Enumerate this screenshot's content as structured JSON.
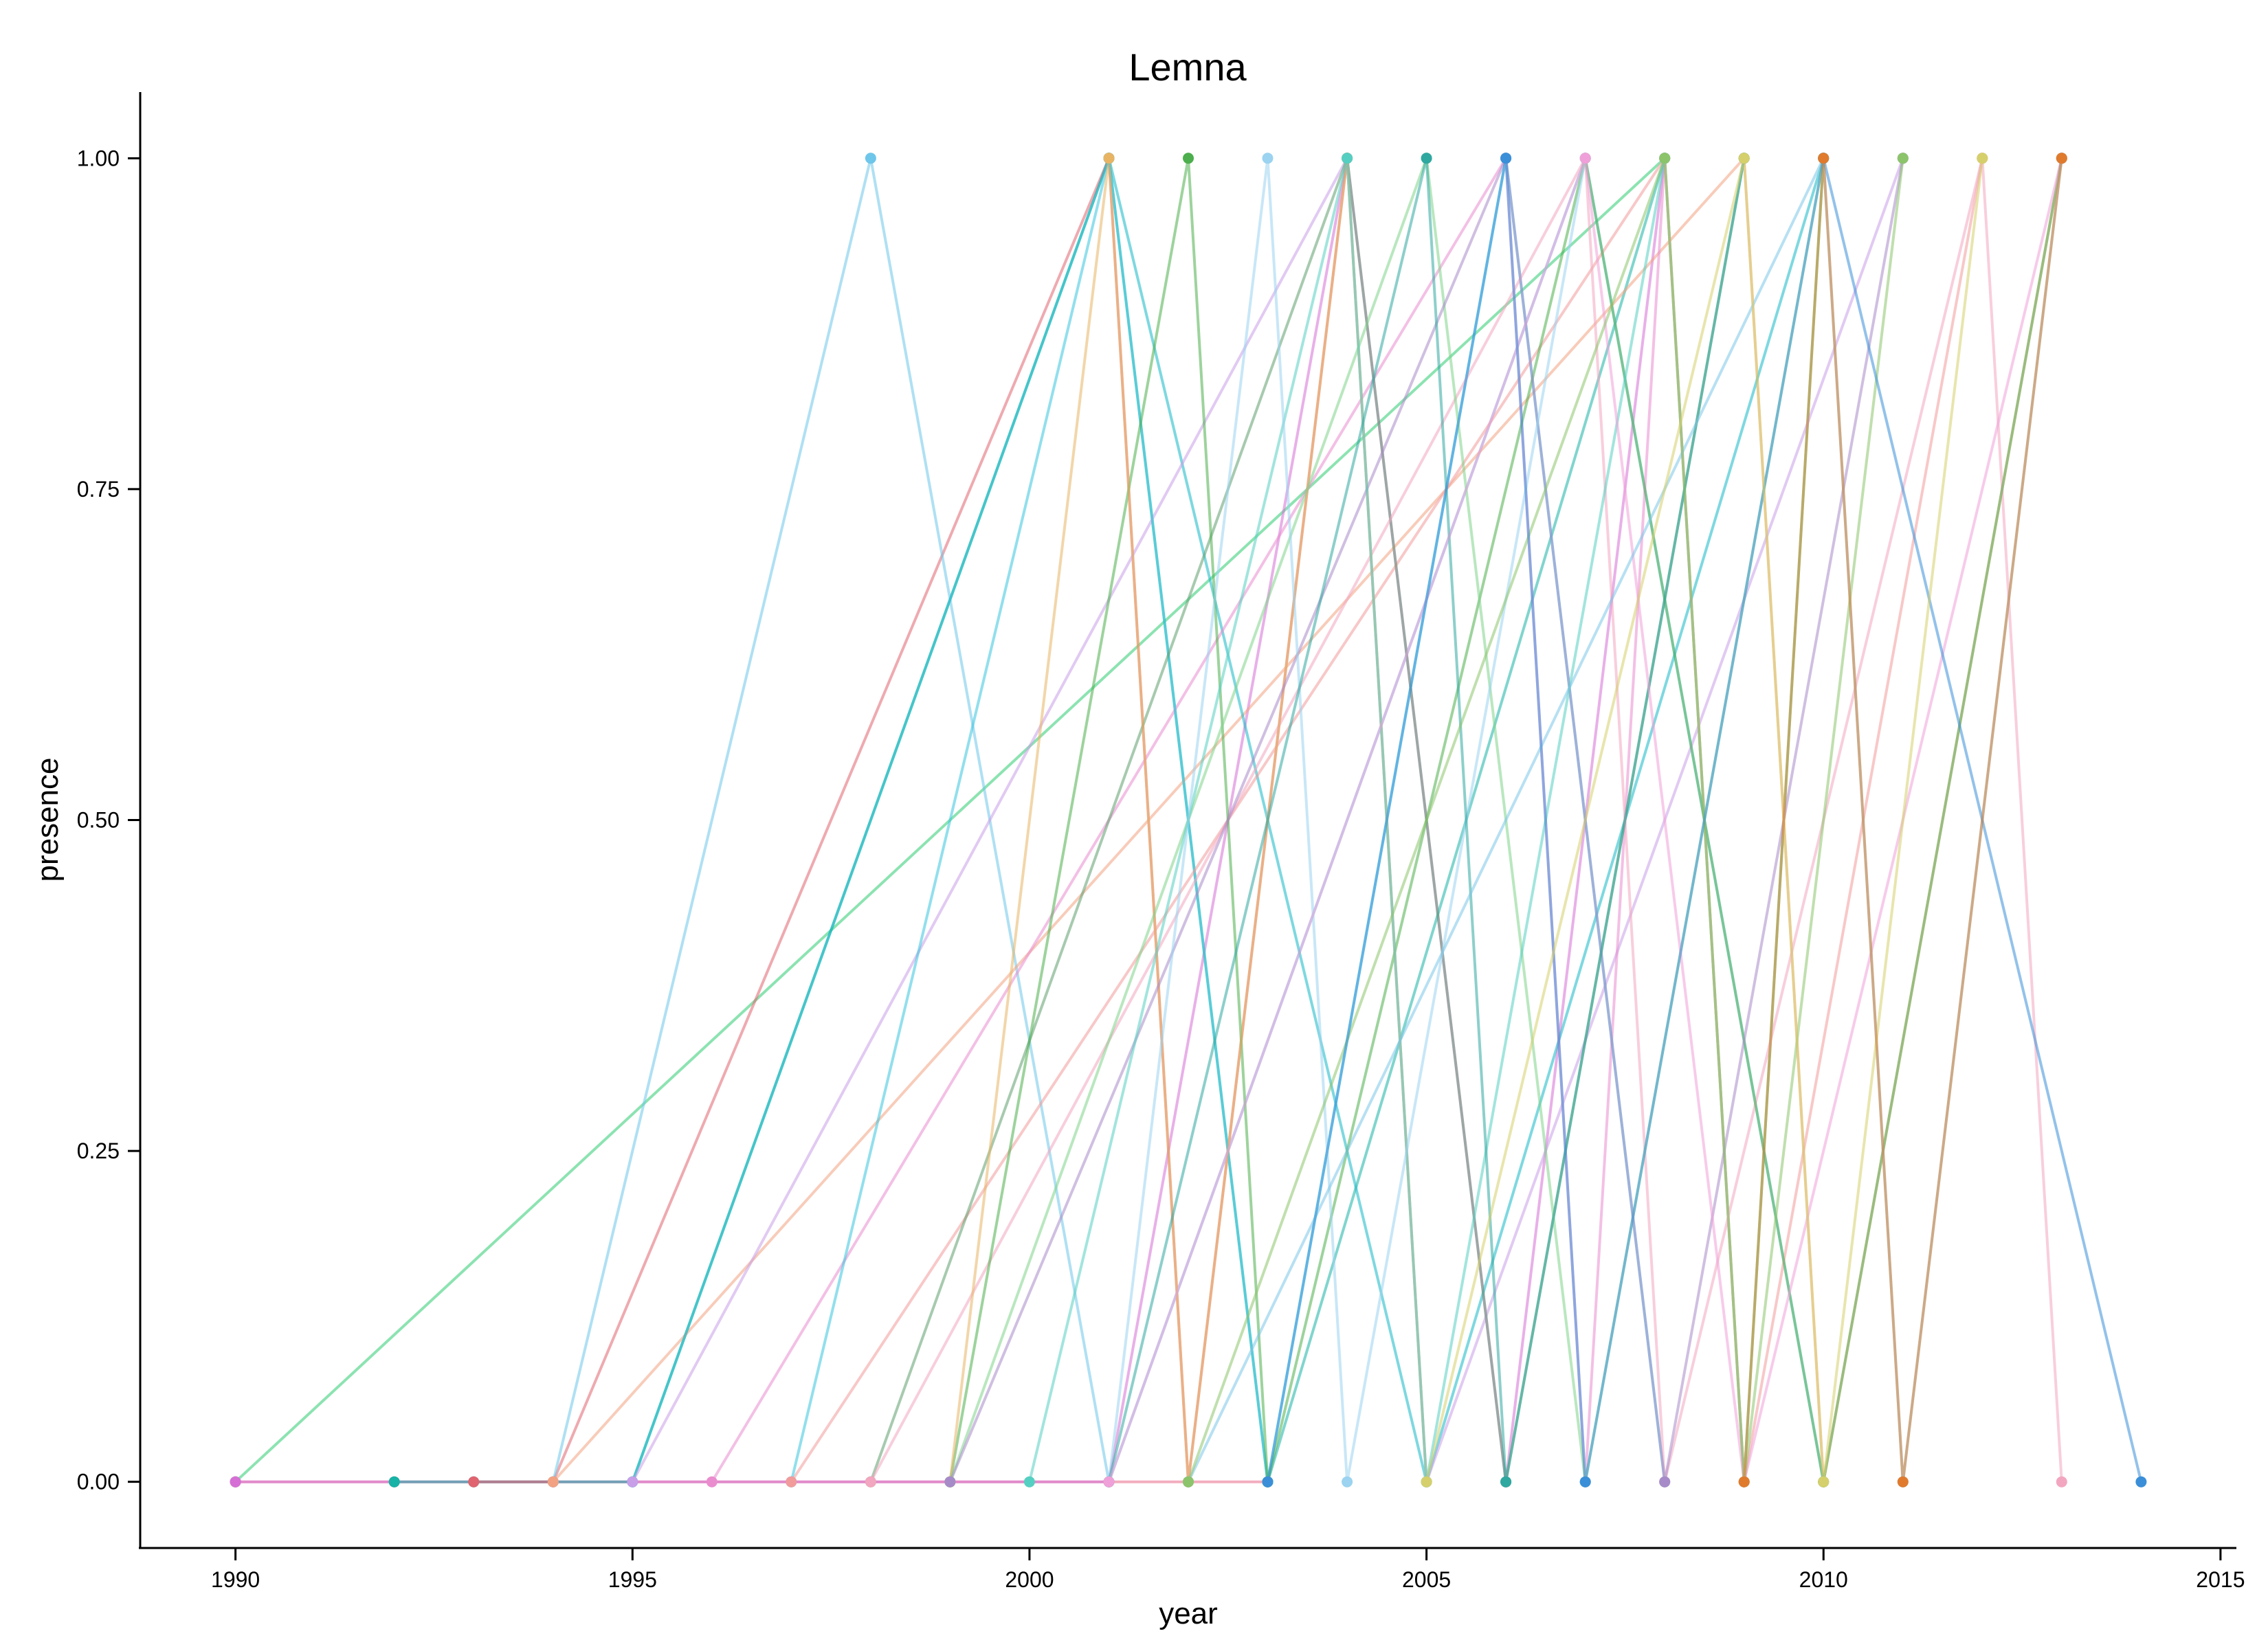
{
  "chart_data": {
    "type": "line",
    "title": "Lemna",
    "xlabel": "year",
    "ylabel": "presence",
    "xlim": [
      1988.8,
      2015.2
    ],
    "ylim": [
      -0.05,
      1.05
    ],
    "xticks": [
      1990,
      1995,
      2000,
      2005,
      2010,
      2015
    ],
    "xtick_labels": [
      "1990",
      "1995",
      "2000",
      "2005",
      "2010",
      "2015"
    ],
    "yticks": [
      0,
      0.25,
      0.5,
      0.75,
      1.0
    ],
    "ytick_labels": [
      "0.00",
      "0.25",
      "0.50",
      "0.75",
      "1.00"
    ],
    "grid": false,
    "legend": "none",
    "series": [
      {
        "color": "#2ecc71",
        "points": [
          [
            1990,
            0
          ],
          [
            2008,
            1
          ],
          [
            2009,
            0
          ],
          [
            2010,
            1
          ]
        ]
      },
      {
        "color": "#e86a8a",
        "points": [
          [
            1990,
            0
          ],
          [
            1992,
            0
          ],
          [
            1994,
            0
          ],
          [
            1999,
            0
          ],
          [
            2003,
            0
          ]
        ]
      },
      {
        "color": "#d56fd6",
        "points": [
          [
            1990,
            0
          ],
          [
            2001,
            0
          ],
          [
            2004,
            1
          ],
          [
            2006,
            0
          ],
          [
            2008,
            1
          ]
        ]
      },
      {
        "color": "#17b3a6",
        "points": [
          [
            1992,
            0
          ],
          [
            1993,
            0
          ],
          [
            1995,
            0
          ],
          [
            2001,
            1
          ],
          [
            2003,
            0
          ],
          [
            2008,
            1
          ]
        ]
      },
      {
        "color": "#e06470",
        "points": [
          [
            1993,
            0
          ],
          [
            1994,
            0
          ],
          [
            2001,
            1
          ],
          [
            2002,
            0
          ],
          [
            2004,
            1
          ]
        ]
      },
      {
        "color": "#6ec6ea",
        "points": [
          [
            1994,
            0
          ],
          [
            1998,
            1
          ],
          [
            2001,
            0
          ],
          [
            2007,
            1
          ],
          [
            2010,
            0
          ]
        ]
      },
      {
        "color": "#f2a282",
        "points": [
          [
            1994,
            0
          ],
          [
            2009,
            1
          ],
          [
            2010,
            0
          ],
          [
            2013,
            1
          ]
        ]
      },
      {
        "color": "#14b8c6",
        "points": [
          [
            1995,
            0
          ],
          [
            2001,
            1
          ],
          [
            2005,
            0
          ],
          [
            2010,
            1
          ]
        ]
      },
      {
        "color": "#c99ee8",
        "points": [
          [
            1995,
            0
          ],
          [
            2004,
            1
          ],
          [
            2005,
            0
          ],
          [
            2011,
            1
          ]
        ]
      },
      {
        "color": "#ea8dcf",
        "points": [
          [
            1996,
            0
          ],
          [
            2006,
            1
          ],
          [
            2007,
            0
          ],
          [
            2008,
            1
          ]
        ]
      },
      {
        "color": "#38c4de",
        "points": [
          [
            1997,
            0
          ],
          [
            2001,
            1
          ],
          [
            2003,
            0
          ],
          [
            2006,
            1
          ],
          [
            2008,
            0
          ]
        ]
      },
      {
        "color": "#f29b9b",
        "points": [
          [
            1997,
            0
          ],
          [
            2008,
            1
          ],
          [
            2009,
            0
          ],
          [
            2012,
            1
          ]
        ]
      },
      {
        "color": "#5e9f6e",
        "points": [
          [
            1998,
            0
          ],
          [
            2004,
            1
          ],
          [
            2006,
            0
          ],
          [
            2009,
            1
          ]
        ]
      },
      {
        "color": "#f3a6bf",
        "points": [
          [
            1998,
            0
          ],
          [
            2007,
            1
          ],
          [
            2008,
            0
          ],
          [
            2012,
            1
          ],
          [
            2013,
            0
          ]
        ]
      },
      {
        "color": "#4cae4c",
        "points": [
          [
            1999,
            0
          ],
          [
            2002,
            1
          ],
          [
            2003,
            0
          ],
          [
            2007,
            1
          ],
          [
            2010,
            0
          ],
          [
            2013,
            1
          ]
        ]
      },
      {
        "color": "#e8b464",
        "points": [
          [
            1999,
            0
          ],
          [
            2001,
            1
          ],
          [
            2002,
            0
          ],
          [
            2004,
            1
          ],
          [
            2005,
            0
          ]
        ]
      },
      {
        "color": "#7fd48a",
        "points": [
          [
            1999,
            0
          ],
          [
            2005,
            1
          ],
          [
            2007,
            0
          ],
          [
            2010,
            1
          ]
        ]
      },
      {
        "color": "#a78bc8",
        "points": [
          [
            1999,
            0
          ],
          [
            2006,
            1
          ],
          [
            2008,
            0
          ],
          [
            2011,
            1
          ]
        ]
      },
      {
        "color": "#55cfc1",
        "points": [
          [
            2000,
            0
          ],
          [
            2004,
            1
          ],
          [
            2005,
            0
          ],
          [
            2008,
            1
          ]
        ]
      },
      {
        "color": "#9bd3f0",
        "points": [
          [
            2001,
            0
          ],
          [
            2003,
            1
          ],
          [
            2004,
            0
          ],
          [
            2007,
            1
          ]
        ]
      },
      {
        "color": "#2fa8a0",
        "points": [
          [
            2001,
            0
          ],
          [
            2005,
            1
          ],
          [
            2006,
            0
          ],
          [
            2009,
            1
          ]
        ]
      },
      {
        "color": "#f0a0d8",
        "points": [
          [
            2001,
            0
          ],
          [
            2007,
            1
          ],
          [
            2009,
            0
          ],
          [
            2013,
            1
          ]
        ]
      },
      {
        "color": "#7cc6e8",
        "points": [
          [
            2002,
            0
          ],
          [
            2010,
            1
          ],
          [
            2011,
            0
          ],
          [
            2013,
            1
          ]
        ]
      },
      {
        "color": "#8cc46b",
        "points": [
          [
            2002,
            0
          ],
          [
            2008,
            1
          ],
          [
            2009,
            0
          ],
          [
            2011,
            1
          ]
        ]
      },
      {
        "color": "#3a8fd8",
        "points": [
          [
            2003,
            0
          ],
          [
            2006,
            1
          ],
          [
            2007,
            0
          ],
          [
            2010,
            1
          ],
          [
            2014,
            0
          ]
        ]
      },
      {
        "color": "#d5d06b",
        "points": [
          [
            2005,
            0
          ],
          [
            2009,
            1
          ],
          [
            2010,
            0
          ],
          [
            2012,
            1
          ]
        ]
      },
      {
        "color": "#e07b2e",
        "points": [
          [
            2009,
            0
          ],
          [
            2010,
            1
          ],
          [
            2011,
            0
          ],
          [
            2013,
            1
          ]
        ]
      }
    ]
  }
}
